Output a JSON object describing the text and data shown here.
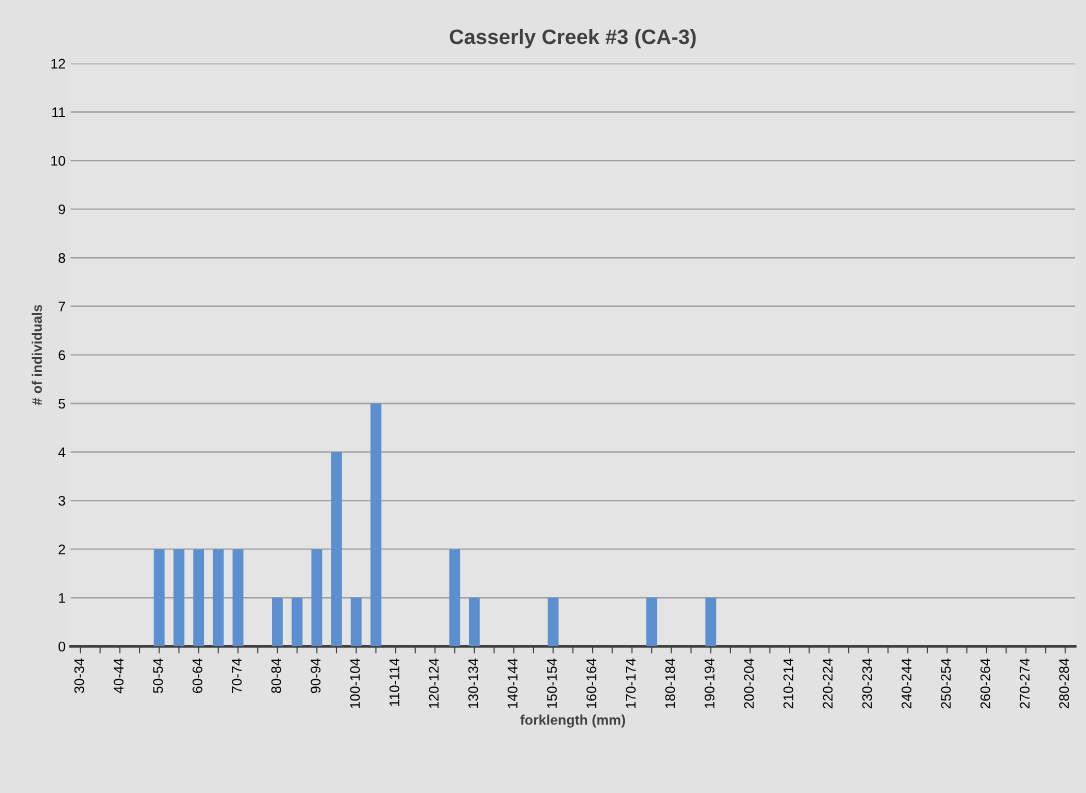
{
  "chart_data": {
    "type": "bar",
    "title": "Casserly Creek #3 (CA-3)",
    "xlabel": "forklength (mm)",
    "ylabel": "# of individuals",
    "categories": [
      "30-34",
      null,
      "40-44",
      null,
      "50-54",
      null,
      "60-64",
      null,
      "70-74",
      null,
      "80-84",
      null,
      "90-94",
      null,
      "100-104",
      null,
      "110-114",
      null,
      "120-124",
      null,
      "130-134",
      null,
      "140-144",
      null,
      "150-154",
      null,
      "160-164",
      null,
      "170-174",
      null,
      "180-184",
      null,
      "190-194",
      null,
      "200-204",
      null,
      "210-214",
      null,
      "220-224",
      null,
      "230-234",
      null,
      "240-244",
      null,
      "250-254",
      null,
      "260-264",
      null,
      "270-274",
      null,
      "280-284"
    ],
    "values": [
      0,
      0,
      0,
      0,
      2,
      2,
      2,
      2,
      2,
      0,
      1,
      1,
      2,
      4,
      1,
      5,
      0,
      0,
      0,
      2,
      1,
      0,
      0,
      0,
      1,
      0,
      0,
      0,
      0,
      1,
      0,
      0,
      1,
      0,
      0,
      0,
      0,
      0,
      0,
      0,
      0,
      0,
      0,
      0,
      0,
      0,
      0,
      0,
      0,
      0,
      0
    ],
    "color": "#5b8fd0",
    "ylim": [
      0,
      12
    ],
    "yticks": [
      0,
      1,
      2,
      3,
      4,
      5,
      6,
      7,
      8,
      9,
      10,
      11,
      12
    ],
    "grid": "y"
  }
}
